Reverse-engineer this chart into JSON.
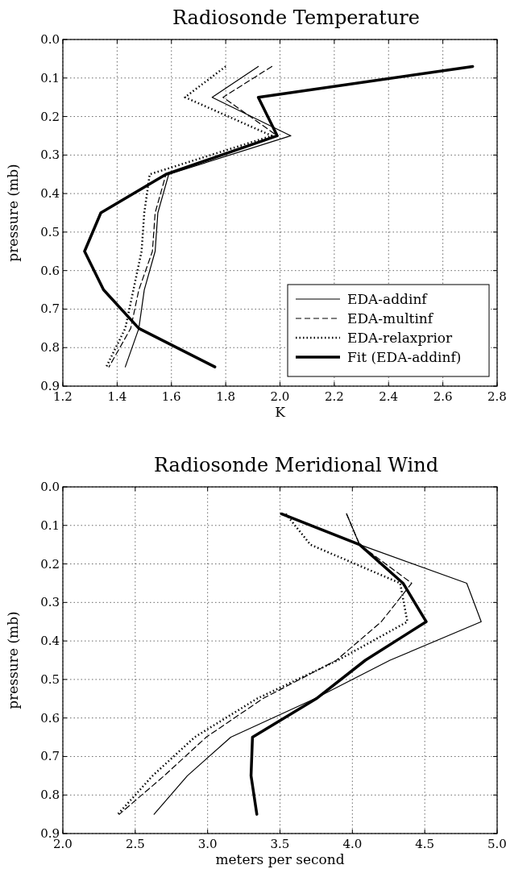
{
  "chart_data": [
    {
      "type": "line",
      "title": "Radiosonde Temperature",
      "xlabel": "K",
      "ylabel": "pressure (mb)",
      "xlim": [
        1.2,
        2.8
      ],
      "xticks": [
        1.2,
        1.4,
        1.6,
        1.8,
        {
          "value": 2,
          "label": "2.0"
        },
        2.2,
        2.4,
        2.6,
        2.8
      ],
      "ylim": [
        0.9,
        0
      ],
      "yticks": [
        {
          "value": 0,
          "label": "0.0"
        },
        0.1,
        0.2,
        0.3,
        0.4,
        0.5,
        0.6,
        0.7,
        0.8,
        0.9
      ],
      "grid": true,
      "legend": "bottom right",
      "series": [
        {
          "name": "EDA-addinf",
          "color": "#000000",
          "line_style": "solid",
          "x": [
            1.92,
            1.75,
            2.04,
            1.59,
            1.55,
            1.54,
            1.5,
            1.48,
            1.43
          ],
          "values": [
            0.07,
            0.15,
            0.25,
            0.35,
            0.45,
            0.55,
            0.65,
            0.75,
            0.85
          ]
        },
        {
          "name": "EDA-multinf",
          "color": "#000000",
          "line_style": "dashed",
          "x": [
            1.97,
            1.79,
            1.99,
            1.58,
            1.54,
            1.53,
            1.48,
            1.45,
            1.37
          ],
          "values": [
            0.07,
            0.15,
            0.25,
            0.35,
            0.45,
            0.55,
            0.65,
            0.75,
            0.85
          ]
        },
        {
          "name": "EDA-relaxprior",
          "color": "#000000",
          "line_style": "dotted",
          "x": [
            1.8,
            1.65,
            1.97,
            1.52,
            1.5,
            1.49,
            1.46,
            1.43,
            1.36
          ],
          "values": [
            0.07,
            0.15,
            0.25,
            0.35,
            0.45,
            0.55,
            0.65,
            0.75,
            0.85
          ]
        },
        {
          "name": "Fit (EDA-addinf)",
          "color": "#000000",
          "line_style": "solid",
          "x": [
            2.71,
            1.92,
            1.99,
            1.58,
            1.34,
            1.28,
            1.35,
            1.48,
            1.76
          ],
          "values": [
            0.07,
            0.15,
            0.25,
            0.35,
            0.45,
            0.55,
            0.65,
            0.75,
            0.85
          ]
        }
      ]
    },
    {
      "type": "line",
      "title": "Radiosonde Meridional Wind",
      "xlabel": "meters per second",
      "ylabel": "pressure (mb)",
      "xlim": [
        2,
        5
      ],
      "xticks": [
        {
          "value": 2,
          "label": "2.0"
        },
        2.5,
        {
          "value": 3,
          "label": "3.0"
        },
        3.5,
        {
          "value": 4,
          "label": "4.0"
        },
        4.5,
        {
          "value": 5,
          "label": "5.0"
        }
      ],
      "ylim": [
        0.9,
        0
      ],
      "yticks": [
        {
          "value": 0,
          "label": "0.0"
        },
        0.1,
        0.2,
        0.3,
        0.4,
        0.5,
        0.6,
        0.7,
        0.8,
        0.9
      ],
      "grid": true,
      "legend": false,
      "series": [
        {
          "color": "#000000",
          "line_style": "solid",
          "x": [
            3.96,
            4.05,
            4.79,
            4.89,
            4.26,
            3.74,
            3.16,
            2.86,
            2.63
          ],
          "values": [
            0.07,
            0.15,
            0.25,
            0.35,
            0.45,
            0.55,
            0.65,
            0.75,
            0.85
          ]
        },
        {
          "color": "#000000",
          "line_style": "dashed",
          "x": [
            3.96,
            4.05,
            4.41,
            4.2,
            3.89,
            3.38,
            2.99,
            2.7,
            2.39
          ],
          "values": [
            0.07,
            0.15,
            0.25,
            0.35,
            0.45,
            0.55,
            0.65,
            0.75,
            0.85
          ]
        },
        {
          "color": "#000000",
          "line_style": "dotted",
          "x": [
            3.54,
            3.71,
            4.33,
            4.38,
            3.9,
            3.34,
            2.91,
            2.62,
            2.38
          ],
          "values": [
            0.07,
            0.15,
            0.25,
            0.35,
            0.45,
            0.55,
            0.65,
            0.75,
            0.85
          ]
        },
        {
          "color": "#000000",
          "line_style": "solid",
          "x": [
            3.51,
            4.05,
            4.35,
            4.51,
            4.09,
            3.75,
            3.31,
            3.3,
            3.34
          ],
          "values": [
            0.07,
            0.15,
            0.25,
            0.35,
            0.45,
            0.55,
            0.65,
            0.75,
            0.85
          ]
        }
      ]
    }
  ]
}
